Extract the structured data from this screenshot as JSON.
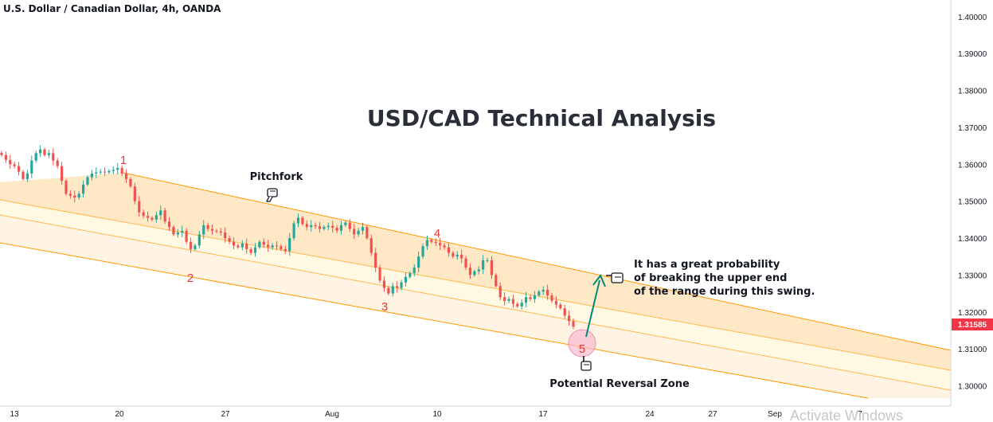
{
  "header": {
    "symbol_title": "U.S. Dollar / Canadian Dollar, 4h, OANDA"
  },
  "chart_data": {
    "type": "candlestick",
    "title": "USD/CAD Technical Analysis",
    "xlabel": "",
    "ylabel": "",
    "x_tick_labels": [
      "13",
      "20",
      "27",
      "Aug",
      "10",
      "17",
      "24",
      "27",
      "Sep",
      "7"
    ],
    "y_tick_labels": [
      "1.40000",
      "1.39000",
      "1.38000",
      "1.37000",
      "1.36000",
      "1.35000",
      "1.34000",
      "1.33000",
      "1.32000",
      "1.31000",
      "1.30000"
    ],
    "ylim": [
      1.2945,
      1.4045
    ],
    "current_price": "1.31585",
    "price_path": [
      1.3625,
      1.3612,
      1.36,
      1.3595,
      1.358,
      1.356,
      1.3575,
      1.361,
      1.363,
      1.364,
      1.3625,
      1.363,
      1.361,
      1.3595,
      1.3555,
      1.352,
      1.3515,
      1.351,
      1.352,
      1.3545,
      1.3565,
      1.3575,
      1.3578,
      1.358,
      1.3578,
      1.3582,
      1.3585,
      1.359,
      1.3575,
      1.356,
      1.354,
      1.35,
      1.347,
      1.346,
      1.3455,
      1.345,
      1.3462,
      1.3475,
      1.3445,
      1.343,
      1.341,
      1.3415,
      1.342,
      1.339,
      1.337,
      1.338,
      1.341,
      1.3435,
      1.3425,
      1.342,
      1.3418,
      1.3415,
      1.34,
      1.339,
      1.338,
      1.3375,
      1.3385,
      1.337,
      1.336,
      1.3375,
      1.339,
      1.3382,
      1.3375,
      1.338,
      1.3378,
      1.337,
      1.3365,
      1.34,
      1.344,
      1.3455,
      1.3438,
      1.343,
      1.3435,
      1.3432,
      1.3425,
      1.343,
      1.3433,
      1.3428,
      1.342,
      1.3435,
      1.3442,
      1.3425,
      1.341,
      1.342,
      1.343,
      1.34,
      1.336,
      1.332,
      1.3285,
      1.3265,
      1.325,
      1.327,
      1.3265,
      1.328,
      1.3295,
      1.3305,
      1.332,
      1.335,
      1.3378,
      1.3395,
      1.339,
      1.3387,
      1.338,
      1.3375,
      1.336,
      1.335,
      1.3355,
      1.3345,
      1.332,
      1.33,
      1.331,
      1.3315,
      1.334,
      1.334,
      1.33,
      1.327,
      1.324,
      1.323,
      1.3235,
      1.3222,
      1.3215,
      1.3225,
      1.324,
      1.3235,
      1.3245,
      1.3255,
      1.326,
      1.3245,
      1.323,
      1.322,
      1.321,
      1.319,
      1.3175,
      1.316
    ],
    "wave_labels": [
      {
        "label": "1",
        "value": 1.36
      },
      {
        "label": "2",
        "value": 1.335
      },
      {
        "label": "3",
        "value": 1.324
      },
      {
        "label": "4",
        "value": 1.3395
      },
      {
        "label": "5",
        "value": 1.3112
      }
    ],
    "annotations": {
      "pitchfork": "Pitchfork",
      "note_line1": "It has a great probability",
      "note_line2": "of breaking the upper end",
      "note_line3": "of the range during this swing.",
      "reversal_zone": "Potential Reversal Zone"
    },
    "grid": false
  },
  "overlay": {
    "watermark": "Activate Windows"
  },
  "colors": {
    "up": "#26a69a",
    "down": "#ef5350",
    "channel_line": "#ff9800",
    "channel_fill_outer": "#ffe0b2",
    "channel_fill_inner": "#fff8e1",
    "wave_label": "#e53935",
    "arrow": "#00897b",
    "price_tag": "#f23645",
    "zone_fill": "#f8bbd0"
  }
}
